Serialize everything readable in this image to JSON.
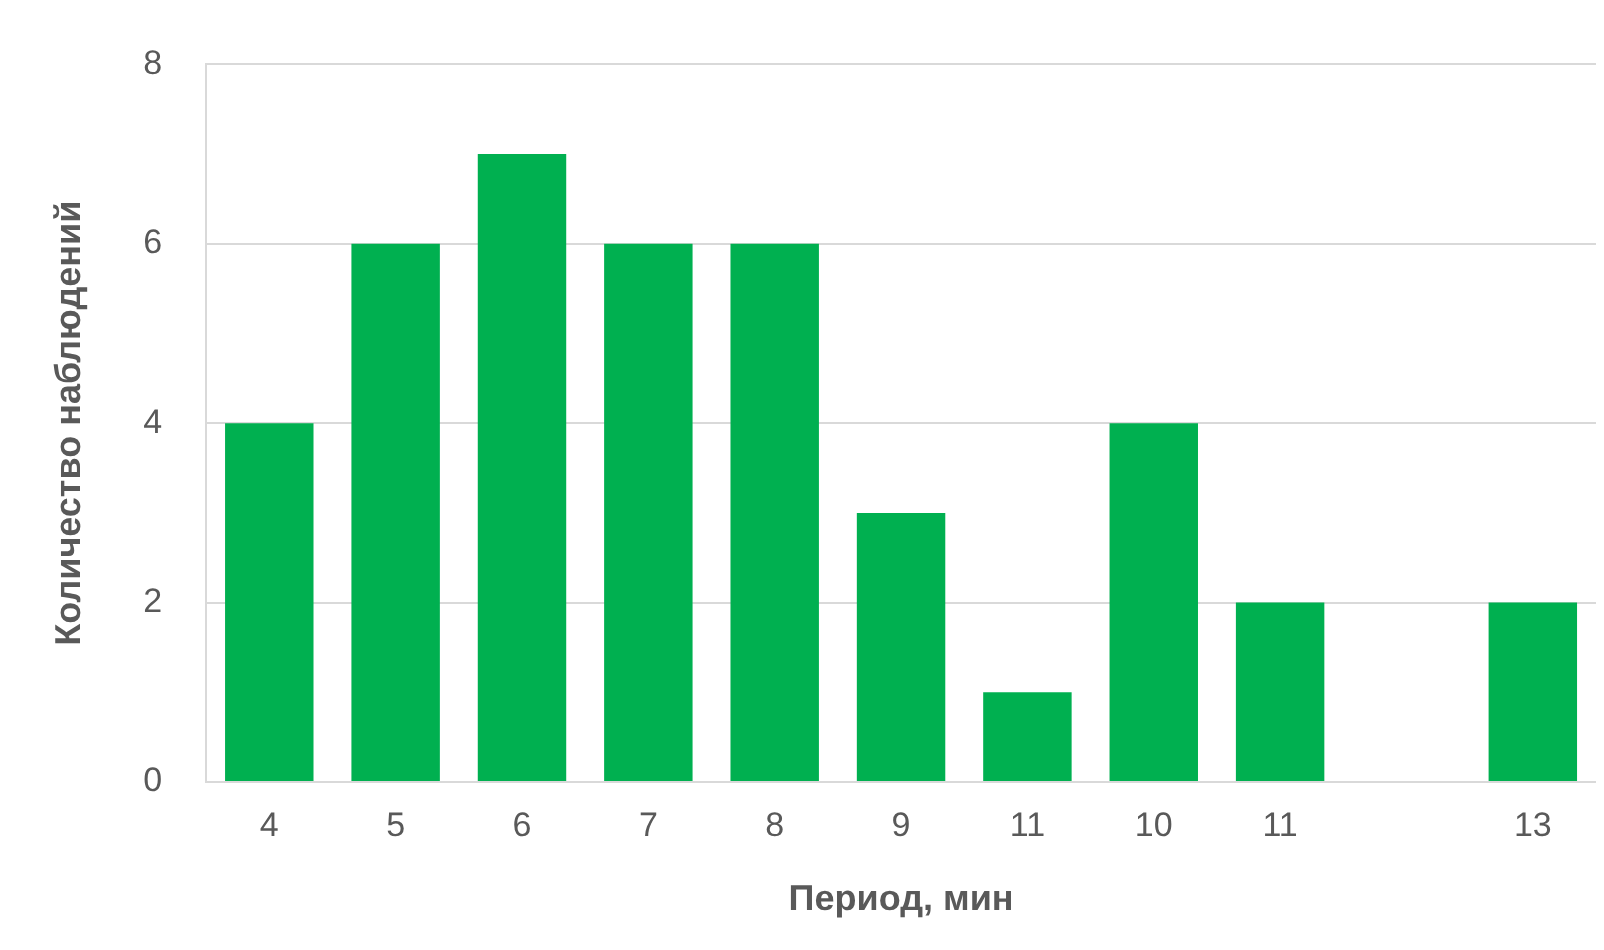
{
  "chart_data": {
    "type": "bar",
    "xlabel": "Период, мин",
    "ylabel": "Количество наблюдений",
    "categories": [
      "4",
      "5",
      "6",
      "7",
      "8",
      "9",
      "11",
      "10",
      "11",
      null,
      "13"
    ],
    "values": [
      4,
      6,
      7,
      6,
      6,
      3,
      1,
      4,
      2,
      null,
      2
    ],
    "color": "#00b050",
    "ylim": [
      0,
      8
    ],
    "yticks": [
      0,
      2,
      4,
      6,
      8
    ],
    "grid": "y",
    "legend": false
  }
}
